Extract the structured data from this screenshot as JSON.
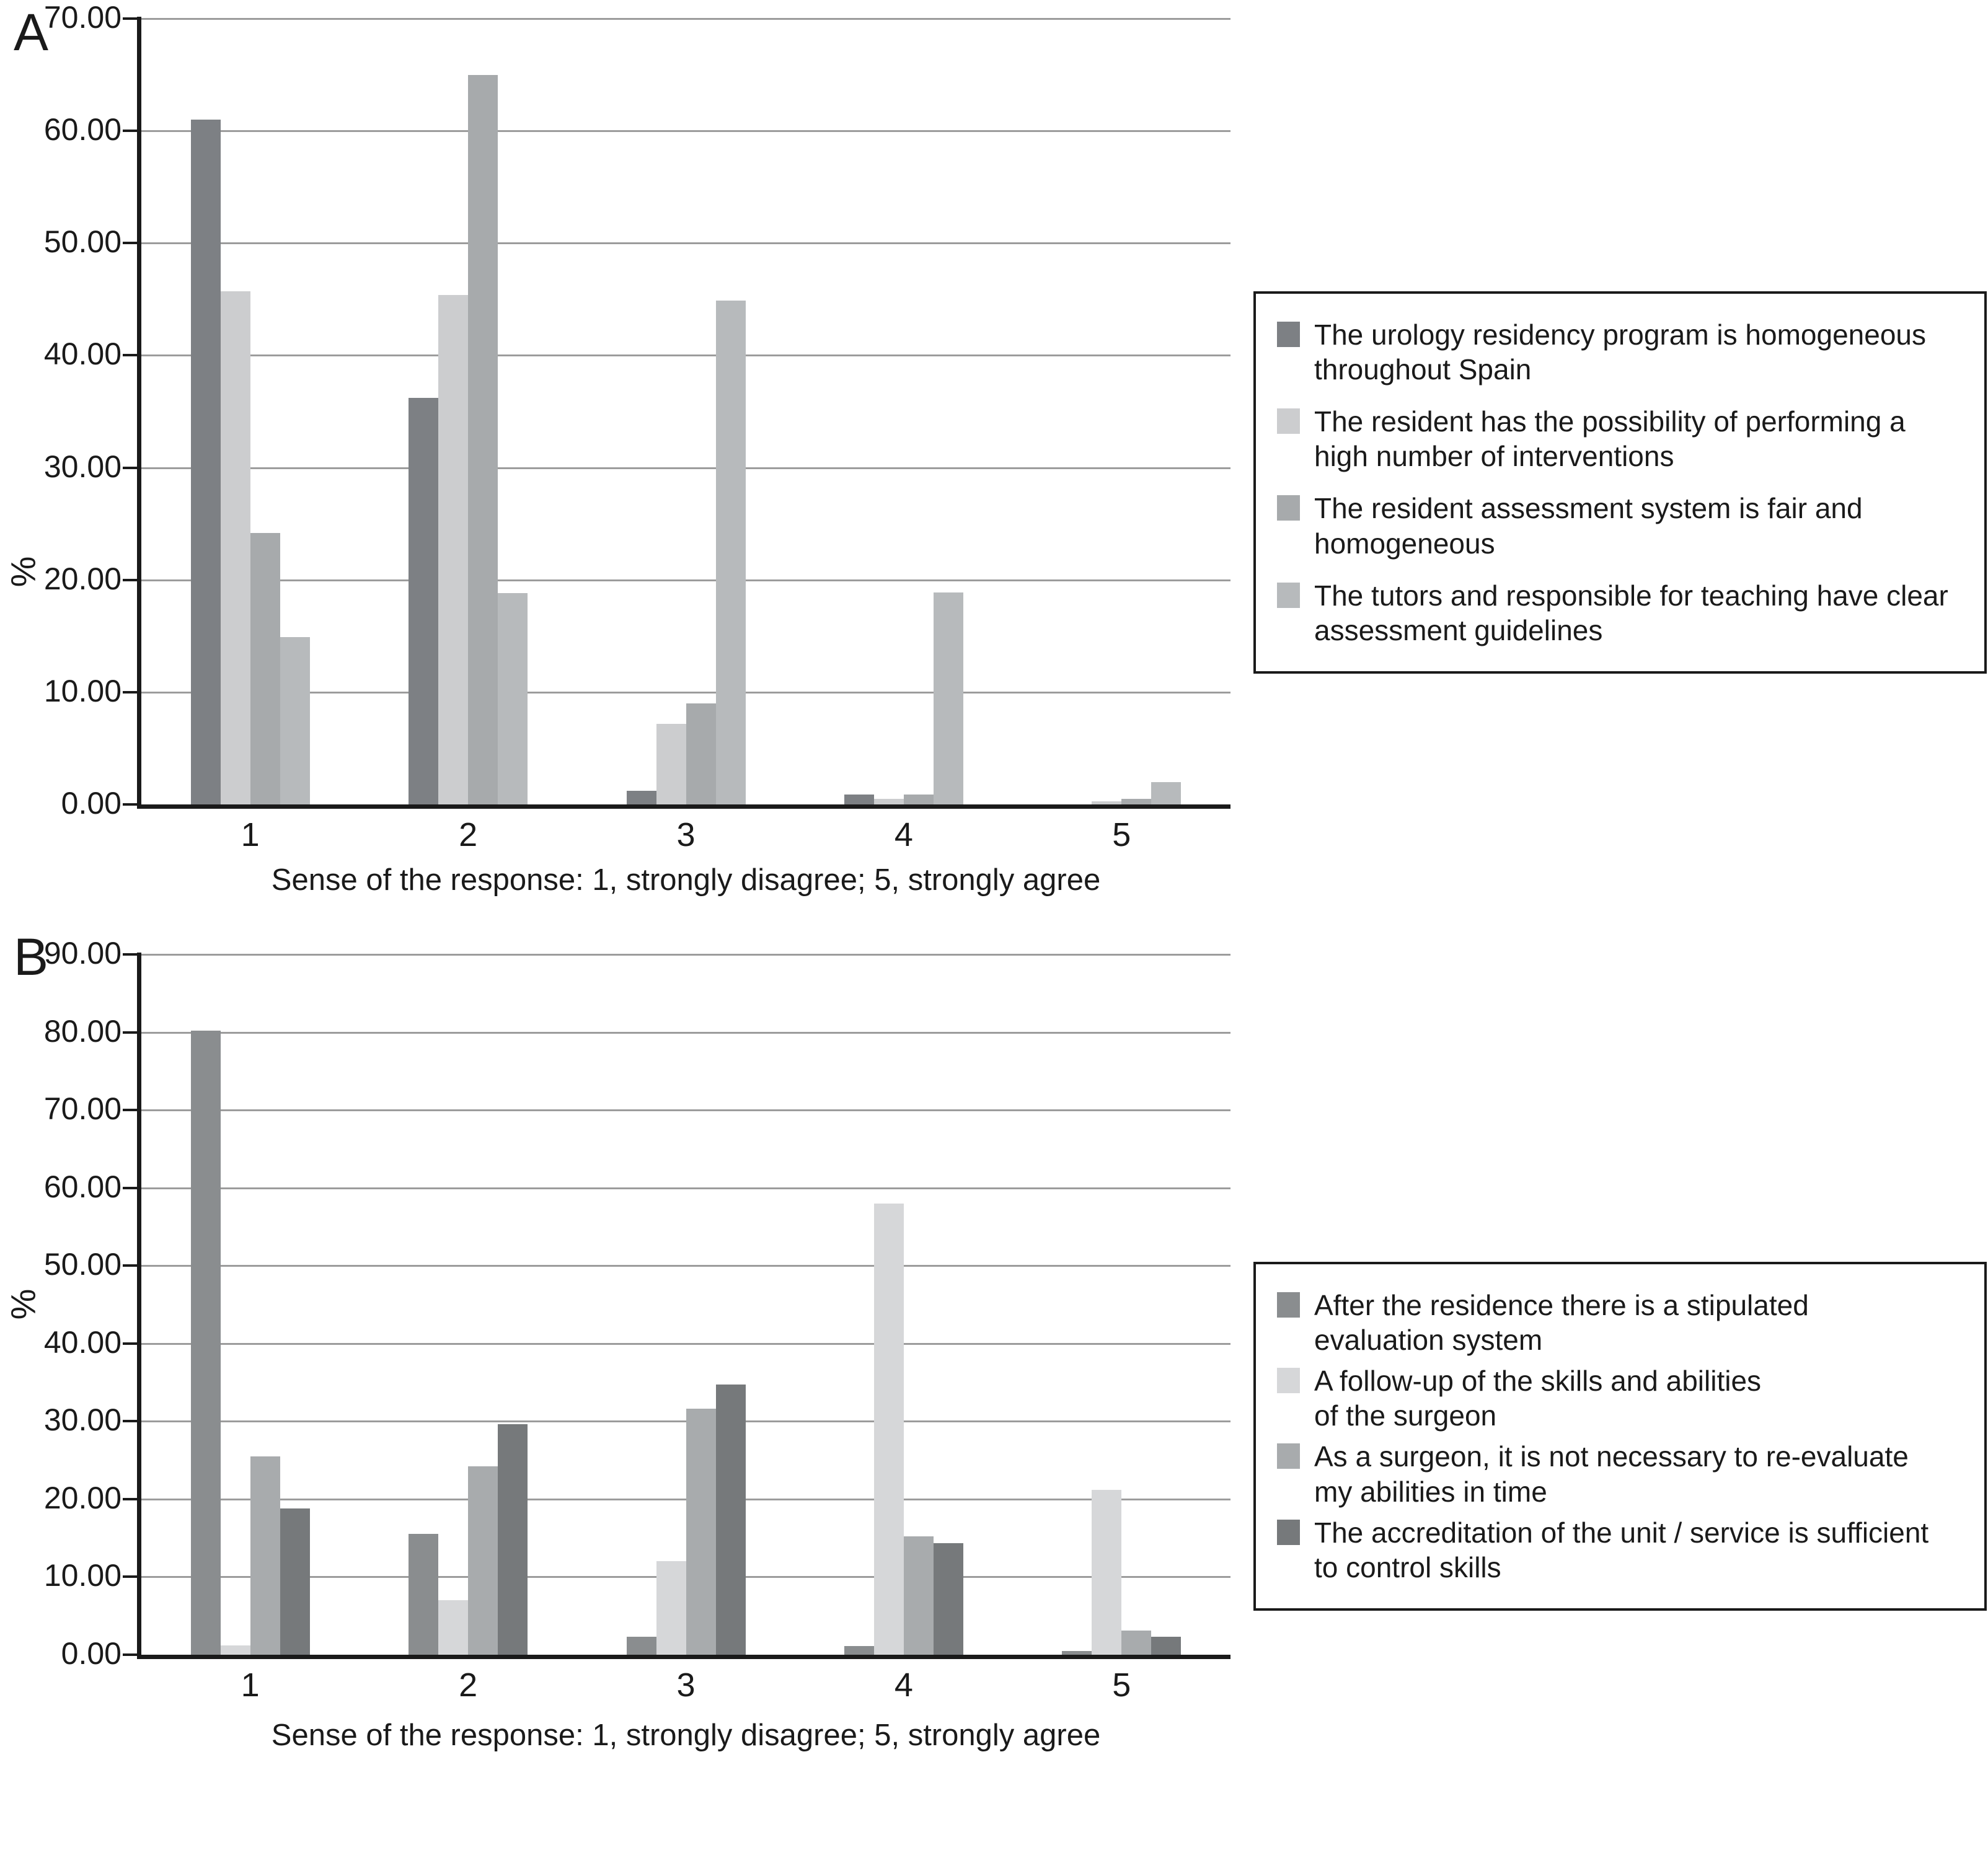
{
  "figure": {
    "description": "Two-panel grouped bar chart figure",
    "panel_labels": [
      "A",
      "B"
    ]
  },
  "chart_data": [
    {
      "type": "bar",
      "panel_label": "A",
      "title": "",
      "xlabel": "Sense of the response: 1, strongly disagree; 5, strongly agree",
      "ylabel": "%",
      "ylim": [
        0,
        70
      ],
      "grid": true,
      "legend_position": "right",
      "ytick_labels": [
        "70.00",
        "60.00",
        "50.00",
        "40.00",
        "30.00",
        "20.00",
        "10.00",
        "0.00"
      ],
      "categories": [
        "1",
        "2",
        "3",
        "4",
        "5"
      ],
      "series": [
        {
          "name": "The urology residency program is homogeneous\nthroughout Spain",
          "color": "#7d8084",
          "values": [
            61.0,
            36.2,
            1.2,
            0.9,
            0
          ]
        },
        {
          "name": "The resident has the possibility of performing a\nhigh number of interventions",
          "color": "#cccdcf",
          "values": [
            45.7,
            45.4,
            7.2,
            0.5,
            0.3
          ]
        },
        {
          "name": "The resident assessment system is fair and\nhomogeneous",
          "color": "#a7aaac",
          "values": [
            24.2,
            65.0,
            9.0,
            0.9,
            0.5
          ]
        },
        {
          "name": "The tutors and responsible for teaching have clear\nassessment guidelines",
          "color": "#b7babc",
          "values": [
            14.9,
            18.8,
            44.9,
            18.9,
            2.0
          ]
        }
      ]
    },
    {
      "type": "bar",
      "panel_label": "B",
      "title": "",
      "xlabel": "Sense of the response: 1, strongly disagree; 5, strongly agree",
      "ylabel": "%",
      "ylim": [
        0,
        90
      ],
      "grid": true,
      "legend_position": "right",
      "ytick_labels": [
        "90.00",
        "80.00",
        "70.00",
        "60.00",
        "50.00",
        "40.00",
        "30.00",
        "20.00",
        "10.00",
        "0.00"
      ],
      "categories": [
        "1",
        "2",
        "3",
        "4",
        "5"
      ],
      "series": [
        {
          "name": "After the residence there is a stipulated\nevaluation system",
          "color": "#8a8d8f",
          "values": [
            80.2,
            15.5,
            2.3,
            1.1,
            0.5
          ]
        },
        {
          "name": "A follow-up of the skills and abilities\nof the surgeon",
          "color": "#d6d7d9",
          "values": [
            1.2,
            7.0,
            12.0,
            58.0,
            21.2
          ]
        },
        {
          "name": "As a surgeon, it is not necessary to re-evaluate\nmy abilities in time",
          "color": "#a8abad",
          "values": [
            25.5,
            24.2,
            31.6,
            15.2,
            3.1
          ]
        },
        {
          "name": "The accreditation of the unit / service is sufficient\nto control skills",
          "color": "#76797b",
          "values": [
            18.8,
            29.6,
            34.7,
            14.3,
            2.3
          ]
        }
      ]
    }
  ]
}
